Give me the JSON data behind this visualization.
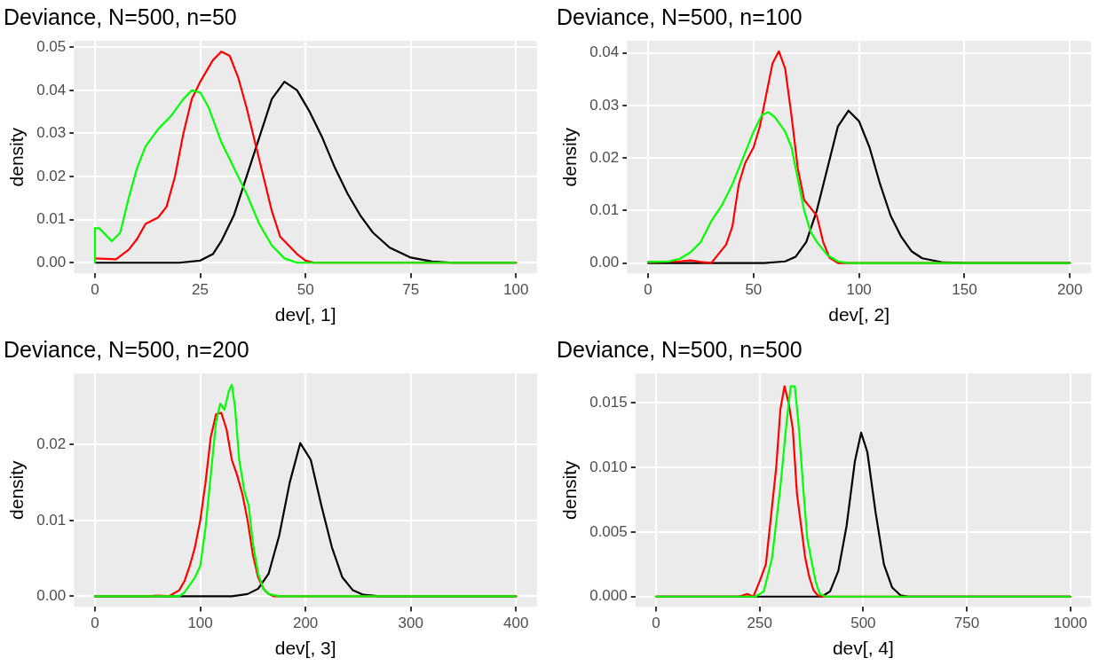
{
  "chart_data": [
    {
      "type": "line",
      "title": "Deviance, N=500, n=50",
      "xlabel": "dev[, 1]",
      "ylabel": "density",
      "xlim": [
        -5,
        105
      ],
      "ylim": [
        -0.0025,
        0.0515
      ],
      "xticks": [
        0,
        25,
        50,
        75,
        100
      ],
      "yticks": [
        {
          "value": 0,
          "label": "0.00"
        },
        {
          "value": 0.01,
          "label": "0.01"
        },
        {
          "value": 0.02,
          "label": "0.02"
        },
        {
          "value": 0.03,
          "label": "0.03"
        },
        {
          "value": 0.04,
          "label": "0.04"
        },
        {
          "value": 0.05,
          "label": "0.05"
        }
      ],
      "grid": true,
      "marker": "none",
      "legend": false,
      "series": [
        {
          "color": "#000000",
          "x": [
            0,
            20,
            25,
            28,
            30,
            33,
            36,
            39,
            42,
            45,
            48,
            51,
            54,
            57,
            60,
            63,
            66,
            70,
            75,
            80,
            85,
            100
          ],
          "values": [
            0,
            0,
            0.0005,
            0.002,
            0.005,
            0.011,
            0.02,
            0.029,
            0.038,
            0.042,
            0.04,
            0.035,
            0.029,
            0.022,
            0.016,
            0.011,
            0.007,
            0.0035,
            0.0012,
            0.0003,
            0,
            0
          ]
        },
        {
          "color": "#ff0000",
          "x": [
            0,
            5,
            8,
            10,
            12,
            15,
            17,
            19,
            21,
            23,
            25,
            28,
            30,
            32,
            34,
            36,
            38,
            40,
            42,
            44,
            46,
            48,
            50,
            52,
            100
          ],
          "values": [
            0.001,
            0.0008,
            0.003,
            0.0055,
            0.009,
            0.0105,
            0.013,
            0.02,
            0.03,
            0.038,
            0.042,
            0.047,
            0.049,
            0.048,
            0.043,
            0.036,
            0.028,
            0.02,
            0.012,
            0.006,
            0.004,
            0.002,
            0.0005,
            0,
            0
          ]
        },
        {
          "color": "#00ff00",
          "x": [
            0,
            0,
            1,
            4,
            6,
            8,
            10,
            12,
            15,
            18,
            21,
            23,
            25,
            27,
            30,
            33,
            36,
            39,
            42,
            45,
            48,
            100
          ],
          "values": [
            0,
            0.008,
            0.008,
            0.005,
            0.007,
            0.015,
            0.022,
            0.027,
            0.031,
            0.034,
            0.038,
            0.04,
            0.0395,
            0.036,
            0.028,
            0.022,
            0.016,
            0.009,
            0.004,
            0.001,
            0,
            0
          ]
        }
      ]
    },
    {
      "type": "line",
      "title": "Deviance, N=500, n=100",
      "xlabel": "dev[, 2]",
      "ylabel": "density",
      "xlim": [
        -10,
        210
      ],
      "ylim": [
        -0.002,
        0.0423
      ],
      "xticks": [
        0,
        50,
        100,
        150,
        200
      ],
      "yticks": [
        {
          "value": 0,
          "label": "0.00"
        },
        {
          "value": 0.01,
          "label": "0.01"
        },
        {
          "value": 0.02,
          "label": "0.02"
        },
        {
          "value": 0.03,
          "label": "0.03"
        },
        {
          "value": 0.04,
          "label": "0.04"
        }
      ],
      "grid": true,
      "marker": "none",
      "legend": false,
      "series": [
        {
          "color": "#000000",
          "x": [
            0,
            55,
            65,
            70,
            75,
            80,
            85,
            90,
            95,
            100,
            105,
            110,
            115,
            120,
            125,
            130,
            140,
            150,
            200
          ],
          "values": [
            0,
            0,
            0.0003,
            0.0012,
            0.004,
            0.01,
            0.018,
            0.026,
            0.029,
            0.027,
            0.022,
            0.015,
            0.009,
            0.005,
            0.0022,
            0.0009,
            0.0001,
            0,
            0
          ]
        },
        {
          "color": "#ff0000",
          "x": [
            0,
            15,
            20,
            25,
            30,
            33,
            37,
            40,
            43,
            46,
            50,
            53,
            56,
            59,
            62,
            65,
            68,
            71,
            74,
            77,
            80,
            83,
            86,
            90,
            200
          ],
          "values": [
            0.0002,
            0.0003,
            0.0005,
            0.0002,
            0,
            0.0015,
            0.0035,
            0.007,
            0.015,
            0.019,
            0.022,
            0.026,
            0.032,
            0.038,
            0.0403,
            0.037,
            0.028,
            0.018,
            0.012,
            0.0105,
            0.009,
            0.004,
            0.001,
            0,
            0
          ]
        },
        {
          "color": "#00ff00",
          "x": [
            0,
            10,
            15,
            20,
            25,
            30,
            35,
            40,
            45,
            50,
            54,
            57,
            60,
            65,
            68,
            71,
            74,
            77,
            80,
            85,
            90,
            95,
            200
          ],
          "values": [
            0.0002,
            0.0003,
            0.0008,
            0.002,
            0.004,
            0.008,
            0.011,
            0.015,
            0.02,
            0.025,
            0.0282,
            0.0287,
            0.0278,
            0.025,
            0.022,
            0.016,
            0.01,
            0.006,
            0.004,
            0.0015,
            0.0003,
            0,
            0
          ]
        }
      ]
    },
    {
      "type": "line",
      "title": "Deviance, N=500, n=200",
      "xlabel": "dev[, 3]",
      "ylabel": "density",
      "xlim": [
        -20,
        420
      ],
      "ylim": [
        -0.0014,
        0.0294
      ],
      "xticks": [
        0,
        100,
        200,
        300,
        400
      ],
      "yticks": [
        {
          "value": 0,
          "label": "0.00"
        },
        {
          "value": 0.01,
          "label": "0.01"
        },
        {
          "value": 0.02,
          "label": "0.02"
        }
      ],
      "grid": true,
      "marker": "none",
      "legend": false,
      "series": [
        {
          "color": "#000000",
          "x": [
            0,
            130,
            145,
            155,
            165,
            175,
            185,
            195,
            205,
            215,
            225,
            235,
            245,
            255,
            270,
            400
          ],
          "values": [
            0,
            0,
            0.0003,
            0.001,
            0.003,
            0.008,
            0.015,
            0.0202,
            0.018,
            0.012,
            0.0065,
            0.0025,
            0.0008,
            0.0002,
            0,
            0
          ]
        },
        {
          "color": "#ff0000",
          "x": [
            0,
            50,
            60,
            70,
            80,
            85,
            90,
            95,
            100,
            105,
            110,
            115,
            120,
            125,
            130,
            135,
            140,
            145,
            150,
            155,
            160,
            165,
            170,
            400
          ],
          "values": [
            0,
            0,
            0.0001,
            0,
            0.0008,
            0.002,
            0.004,
            0.0065,
            0.01,
            0.015,
            0.021,
            0.024,
            0.0242,
            0.022,
            0.018,
            0.016,
            0.0135,
            0.01,
            0.0055,
            0.0025,
            0.001,
            0.0003,
            0,
            0
          ]
        },
        {
          "color": "#00ff00",
          "x": [
            0,
            80,
            85,
            90,
            95,
            100,
            105,
            110,
            115,
            119,
            123,
            127,
            130,
            133,
            137,
            142,
            146,
            150,
            155,
            160,
            165,
            175,
            400
          ],
          "values": [
            0,
            0,
            0.0005,
            0.0015,
            0.0025,
            0.004,
            0.009,
            0.016,
            0.023,
            0.0254,
            0.0246,
            0.027,
            0.0279,
            0.025,
            0.018,
            0.0138,
            0.012,
            0.007,
            0.003,
            0.001,
            0.0003,
            0,
            0
          ]
        }
      ]
    },
    {
      "type": "line",
      "title": "Deviance, N=500, n=500",
      "xlabel": "dev[, 4]",
      "ylabel": "density",
      "xlim": [
        -50,
        1050
      ],
      "ylim": [
        -0.0008,
        0.0173
      ],
      "xticks": [
        0,
        250,
        500,
        750,
        1000
      ],
      "yticks": [
        {
          "value": 0,
          "label": "0.000"
        },
        {
          "value": 0.005,
          "label": "0.005"
        },
        {
          "value": 0.01,
          "label": "0.010"
        },
        {
          "value": 0.015,
          "label": "0.015"
        }
      ],
      "grid": true,
      "marker": "none",
      "legend": false,
      "series": [
        {
          "color": "#000000",
          "x": [
            0,
            400,
            420,
            440,
            460,
            480,
            495,
            510,
            530,
            550,
            570,
            590,
            610,
            1000
          ],
          "values": [
            0,
            0,
            0.0004,
            0.002,
            0.0055,
            0.0105,
            0.0127,
            0.0112,
            0.0065,
            0.0025,
            0.0007,
            0.0001,
            0,
            0
          ]
        },
        {
          "color": "#ff0000",
          "x": [
            0,
            200,
            220,
            235,
            250,
            265,
            280,
            290,
            300,
            310,
            320,
            330,
            340,
            350,
            360,
            370,
            380,
            390,
            400,
            1000
          ],
          "values": [
            0,
            0,
            0.0002,
            0,
            0.0012,
            0.0025,
            0.007,
            0.01,
            0.0145,
            0.0163,
            0.015,
            0.013,
            0.008,
            0.0055,
            0.003,
            0.0015,
            0.0005,
            0.0001,
            0,
            0
          ]
        },
        {
          "color": "#00ff00",
          "x": [
            0,
            240,
            260,
            280,
            300,
            315,
            325,
            335,
            345,
            355,
            365,
            375,
            385,
            395,
            410,
            1000
          ],
          "values": [
            0,
            0,
            0.0004,
            0.003,
            0.0085,
            0.0135,
            0.0163,
            0.0163,
            0.013,
            0.0085,
            0.0045,
            0.0028,
            0.0012,
            0.0002,
            0,
            0
          ]
        }
      ]
    }
  ]
}
